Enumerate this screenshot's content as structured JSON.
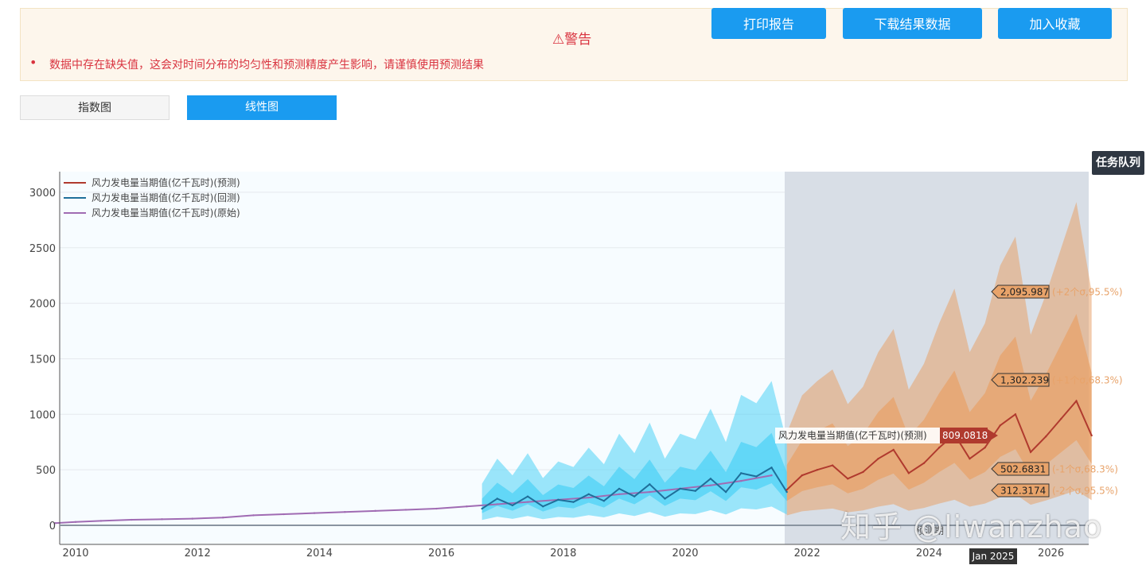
{
  "alert": {
    "title": "⚠警告",
    "message": "数据中存在缺失值，这会对时间分布的均匀性和预测精度产生影响，请谨慎使用预测结果"
  },
  "buttons": {
    "print": "打印报告",
    "download": "下载结果数据",
    "favorite": "加入收藏"
  },
  "tabs": [
    {
      "label": "指数图",
      "active": false
    },
    {
      "label": "线性图",
      "active": true
    }
  ],
  "task_queue": "任务队列",
  "watermark": "知乎 @liwanzhao",
  "colors": {
    "accent": "#1a9bf0",
    "alert_text": "#d9333f",
    "forecast": "#b03a2e",
    "backtest": "#1f6f9a",
    "original": "#a06bb3",
    "forecast_band": "#e8a36a",
    "backtest_band": "#4fd2f5"
  },
  "chart_data": {
    "type": "line",
    "x_ticks": [
      "2010",
      "2012",
      "2014",
      "2016",
      "2018",
      "2020",
      "2022",
      "2024",
      "2026"
    ],
    "y_ticks": [
      0,
      500,
      1000,
      1500,
      2000,
      2500,
      3000
    ],
    "ylim": [
      -170,
      3180
    ],
    "forecast_region_start": "2021-09",
    "series": [
      {
        "name": "风力发电量当期值(亿千瓦时)(预测)",
        "x": [
          "2021-09",
          "2021-12",
          "2022-03",
          "2022-06",
          "2022-09",
          "2022-12",
          "2023-03",
          "2023-06",
          "2023-09",
          "2023-12",
          "2024-03",
          "2024-06",
          "2024-09",
          "2024-12",
          "2025-03",
          "2025-06",
          "2025-09",
          "2025-12",
          "2026-03",
          "2026-06",
          "2026-09"
        ],
        "values": [
          320,
          450,
          500,
          540,
          420,
          480,
          600,
          680,
          470,
          560,
          700,
          820,
          600,
          700,
          900,
          1000,
          660,
          800,
          960,
          1120,
          809
        ]
      },
      {
        "name": "风力发电量当期值(亿千瓦时)(回测)",
        "x": [
          "2016-09",
          "2016-12",
          "2017-03",
          "2017-06",
          "2017-09",
          "2017-12",
          "2018-03",
          "2018-06",
          "2018-09",
          "2018-12",
          "2019-03",
          "2019-06",
          "2019-09",
          "2019-12",
          "2020-03",
          "2020-06",
          "2020-09",
          "2020-12",
          "2021-03",
          "2021-06",
          "2021-09"
        ],
        "values": [
          150,
          240,
          180,
          260,
          170,
          230,
          210,
          280,
          220,
          330,
          260,
          370,
          240,
          330,
          310,
          420,
          300,
          470,
          440,
          520,
          300
        ]
      },
      {
        "name": "风力发电量当期值(亿千瓦时)(原始)",
        "x": [
          "2009-09",
          "2010-01",
          "2010-06",
          "2010-12",
          "2011-06",
          "2011-12",
          "2012-06",
          "2012-12",
          "2013-06",
          "2013-12",
          "2014-06",
          "2014-12",
          "2015-06",
          "2015-12",
          "2016-06",
          "2016-12",
          "2017-06",
          "2017-12",
          "2018-06",
          "2018-12",
          "2019-06",
          "2019-12",
          "2020-06",
          "2020-12",
          "2021-06"
        ],
        "values": [
          20,
          30,
          40,
          50,
          55,
          60,
          70,
          90,
          100,
          110,
          120,
          130,
          140,
          150,
          170,
          190,
          210,
          230,
          250,
          280,
          300,
          330,
          360,
          400,
          450
        ]
      }
    ],
    "annotations": [
      {
        "label": "2,095.987",
        "note": "(+2个σ,95.5%)"
      },
      {
        "label": "1,302.239",
        "note": "(+1个σ,68.3%)"
      },
      {
        "label": "502.6831",
        "note": "(-1个σ,68.3%)"
      },
      {
        "label": "312.3174",
        "note": "(-2个σ,95.5%)"
      }
    ],
    "hover_tooltip": {
      "series": "风力发电量当期值(亿千瓦时)(预测)",
      "value": "809.0818"
    },
    "x_hover_label": "Jan 2025",
    "region_label": "预测期"
  }
}
